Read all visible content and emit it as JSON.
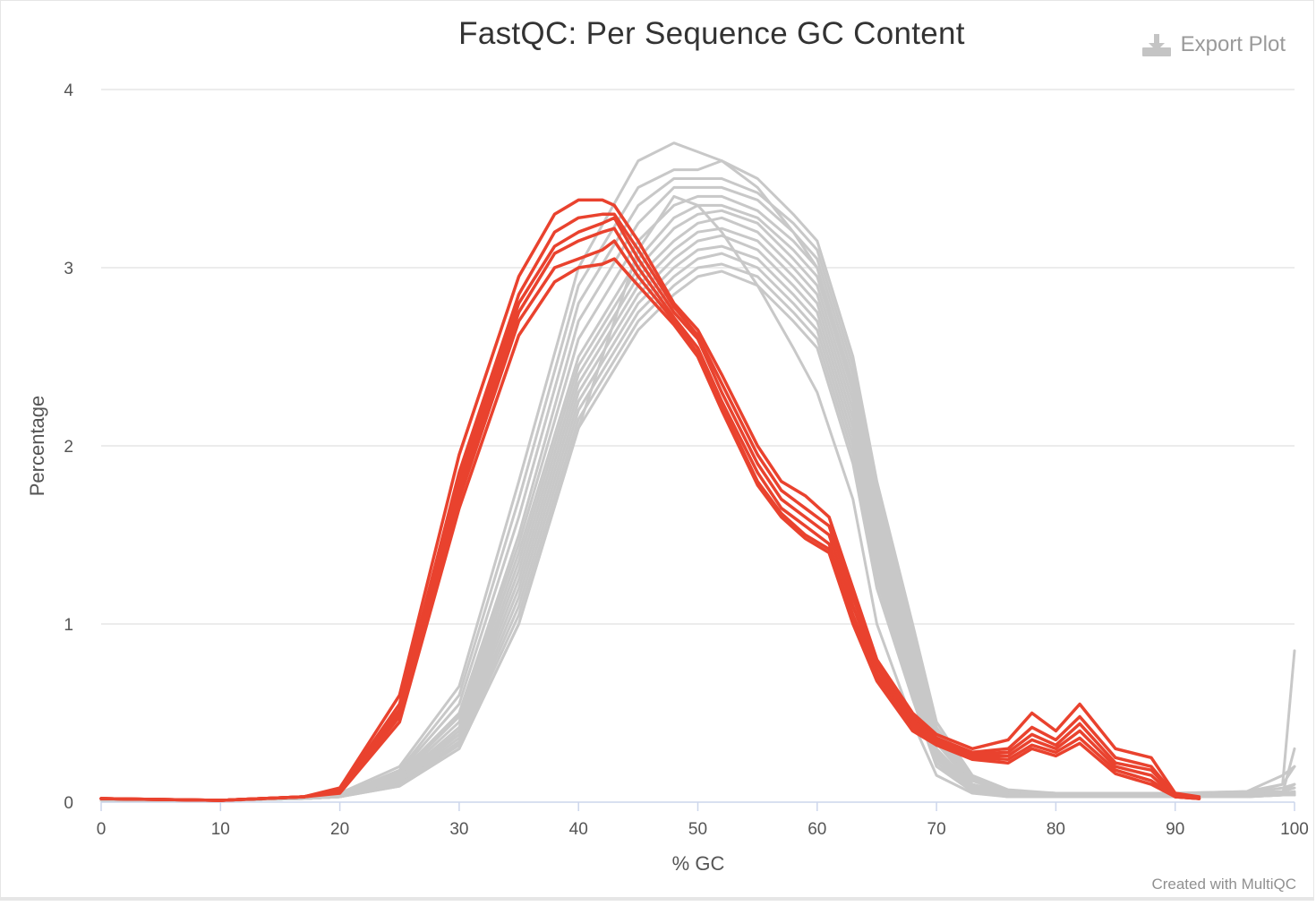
{
  "title": "FastQC: Per Sequence GC Content",
  "export_label": "Export Plot",
  "credit": "Created with MultiQC",
  "chart_data": {
    "type": "line",
    "title": "FastQC: Per Sequence GC Content",
    "xlabel": "% GC",
    "ylabel": "Percentage",
    "xlim": [
      0,
      100
    ],
    "ylim": [
      0,
      4
    ],
    "x_ticks": [
      "0",
      "10",
      "20",
      "30",
      "40",
      "50",
      "60",
      "70",
      "80",
      "90",
      "100"
    ],
    "y_ticks": [
      "0",
      "1",
      "2",
      "3",
      "4"
    ],
    "grid": true,
    "colors": {
      "fail": "#e9422e",
      "pass": "#c8c8c8"
    },
    "series": [
      {
        "status": "fail",
        "x": [
          0,
          10,
          17,
          20,
          25,
          30,
          35,
          38,
          40,
          42,
          43,
          45,
          48,
          50,
          52,
          55,
          57,
          59,
          61,
          63,
          65,
          68,
          70,
          73,
          76,
          78,
          80,
          82,
          85,
          88,
          90,
          92
        ],
        "y": [
          0.02,
          0.01,
          0.03,
          0.08,
          0.6,
          1.95,
          2.95,
          3.3,
          3.38,
          3.38,
          3.35,
          3.15,
          2.8,
          2.65,
          2.4,
          2.0,
          1.8,
          1.72,
          1.6,
          1.2,
          0.8,
          0.5,
          0.38,
          0.3,
          0.35,
          0.5,
          0.4,
          0.55,
          0.3,
          0.25,
          0.05,
          0.03
        ]
      },
      {
        "status": "fail",
        "x": [
          0,
          10,
          17,
          20,
          25,
          30,
          35,
          38,
          40,
          42,
          43,
          45,
          48,
          50,
          52,
          55,
          57,
          59,
          61,
          63,
          65,
          68,
          70,
          73,
          76,
          78,
          80,
          82,
          85,
          88,
          90,
          92
        ],
        "y": [
          0.02,
          0.01,
          0.03,
          0.07,
          0.55,
          1.85,
          2.85,
          3.2,
          3.28,
          3.3,
          3.3,
          3.1,
          2.78,
          2.62,
          2.35,
          1.95,
          1.75,
          1.65,
          1.55,
          1.15,
          0.78,
          0.48,
          0.36,
          0.28,
          0.3,
          0.42,
          0.35,
          0.48,
          0.25,
          0.2,
          0.04,
          0.02
        ]
      },
      {
        "status": "fail",
        "x": [
          0,
          10,
          17,
          20,
          25,
          30,
          35,
          38,
          40,
          42,
          43,
          45,
          48,
          50,
          52,
          55,
          57,
          59,
          61,
          63,
          65,
          68,
          70,
          73,
          76,
          78,
          80,
          82,
          85,
          88,
          90,
          92
        ],
        "y": [
          0.02,
          0.01,
          0.03,
          0.07,
          0.52,
          1.8,
          2.8,
          3.12,
          3.2,
          3.25,
          3.28,
          3.05,
          2.75,
          2.6,
          2.3,
          1.9,
          1.7,
          1.6,
          1.5,
          1.1,
          0.75,
          0.46,
          0.35,
          0.27,
          0.28,
          0.38,
          0.32,
          0.44,
          0.22,
          0.18,
          0.04,
          0.02
        ]
      },
      {
        "status": "fail",
        "x": [
          0,
          10,
          17,
          20,
          25,
          30,
          35,
          38,
          40,
          42,
          43,
          45,
          48,
          50,
          52,
          55,
          57,
          59,
          61,
          63,
          65,
          68,
          70,
          73,
          76,
          78,
          80,
          82,
          85,
          88,
          90,
          92
        ],
        "y": [
          0.02,
          0.01,
          0.03,
          0.06,
          0.5,
          1.75,
          2.75,
          3.08,
          3.15,
          3.2,
          3.22,
          3.0,
          2.72,
          2.55,
          2.25,
          1.85,
          1.65,
          1.55,
          1.45,
          1.05,
          0.72,
          0.44,
          0.34,
          0.26,
          0.26,
          0.35,
          0.3,
          0.4,
          0.2,
          0.15,
          0.03,
          0.02
        ]
      },
      {
        "status": "fail",
        "x": [
          0,
          10,
          17,
          20,
          25,
          30,
          35,
          38,
          40,
          42,
          43,
          45,
          48,
          50,
          52,
          55,
          57,
          59,
          61,
          63,
          65,
          68,
          70,
          73,
          76,
          78,
          80,
          82,
          85,
          88,
          90,
          92
        ],
        "y": [
          0.02,
          0.01,
          0.03,
          0.06,
          0.48,
          1.7,
          2.7,
          3.0,
          3.05,
          3.1,
          3.15,
          2.95,
          2.7,
          2.52,
          2.22,
          1.8,
          1.62,
          1.5,
          1.42,
          1.02,
          0.7,
          0.42,
          0.33,
          0.25,
          0.24,
          0.32,
          0.28,
          0.36,
          0.18,
          0.12,
          0.03,
          0.02
        ]
      },
      {
        "status": "fail",
        "x": [
          0,
          10,
          17,
          20,
          25,
          30,
          35,
          38,
          40,
          42,
          43,
          45,
          48,
          50,
          52,
          55,
          57,
          59,
          61,
          63,
          65,
          68,
          70,
          73,
          76,
          78,
          80,
          82,
          85,
          88,
          90,
          92
        ],
        "y": [
          0.02,
          0.01,
          0.03,
          0.05,
          0.45,
          1.65,
          2.62,
          2.92,
          3.0,
          3.02,
          3.05,
          2.9,
          2.68,
          2.5,
          2.2,
          1.78,
          1.6,
          1.48,
          1.4,
          1.0,
          0.68,
          0.4,
          0.32,
          0.24,
          0.22,
          0.3,
          0.26,
          0.33,
          0.16,
          0.1,
          0.03,
          0.02
        ]
      },
      {
        "status": "pass",
        "x": [
          0,
          10,
          17,
          20,
          25,
          30,
          35,
          40,
          45,
          48,
          50,
          52,
          55,
          58,
          60,
          63,
          65,
          68,
          70,
          73,
          76,
          80,
          90,
          96,
          99,
          100
        ],
        "y": [
          0.01,
          0.01,
          0.02,
          0.05,
          0.2,
          0.65,
          1.8,
          3.0,
          3.6,
          3.7,
          3.65,
          3.6,
          3.45,
          3.2,
          3.0,
          2.3,
          1.6,
          0.8,
          0.35,
          0.12,
          0.06,
          0.05,
          0.05,
          0.05,
          0.05,
          0.3
        ]
      },
      {
        "status": "pass",
        "x": [
          0,
          10,
          17,
          20,
          25,
          30,
          35,
          40,
          45,
          48,
          50,
          52,
          55,
          58,
          60,
          63,
          65,
          68,
          70,
          73,
          76,
          80,
          90,
          96,
          99,
          100
        ],
        "y": [
          0.01,
          0.01,
          0.02,
          0.04,
          0.18,
          0.6,
          1.7,
          2.9,
          3.45,
          3.55,
          3.55,
          3.6,
          3.5,
          3.3,
          3.15,
          2.5,
          1.8,
          1.0,
          0.45,
          0.15,
          0.07,
          0.05,
          0.05,
          0.05,
          0.1,
          0.85
        ]
      },
      {
        "status": "pass",
        "x": [
          0,
          10,
          17,
          20,
          25,
          30,
          35,
          40,
          45,
          48,
          50,
          52,
          55,
          58,
          60,
          63,
          65,
          68,
          70,
          73,
          76,
          80,
          90,
          96,
          99,
          100
        ],
        "y": [
          0.01,
          0.01,
          0.02,
          0.04,
          0.17,
          0.55,
          1.6,
          2.8,
          3.35,
          3.5,
          3.5,
          3.5,
          3.42,
          3.25,
          3.1,
          2.45,
          1.75,
          0.95,
          0.42,
          0.14,
          0.06,
          0.05,
          0.05,
          0.06,
          0.1,
          0.2
        ]
      },
      {
        "status": "pass",
        "x": [
          0,
          10,
          17,
          20,
          25,
          30,
          35,
          40,
          45,
          48,
          50,
          52,
          55,
          58,
          60,
          63,
          65,
          68,
          70,
          73,
          76,
          80,
          90,
          96,
          99,
          100
        ],
        "y": [
          0.01,
          0.01,
          0.02,
          0.04,
          0.16,
          0.5,
          1.5,
          2.7,
          3.25,
          3.45,
          3.45,
          3.45,
          3.38,
          3.2,
          3.05,
          2.4,
          1.7,
          0.9,
          0.4,
          0.13,
          0.06,
          0.05,
          0.05,
          0.06,
          0.15,
          0.2
        ]
      },
      {
        "status": "pass",
        "x": [
          0,
          10,
          17,
          20,
          25,
          30,
          35,
          40,
          45,
          48,
          50,
          52,
          55,
          58,
          60,
          63,
          65,
          68,
          70,
          73,
          76,
          80,
          90,
          96,
          99,
          100
        ],
        "y": [
          0.01,
          0.01,
          0.02,
          0.04,
          0.15,
          0.48,
          1.45,
          2.6,
          3.15,
          3.35,
          3.4,
          3.4,
          3.32,
          3.15,
          3.0,
          2.35,
          1.65,
          0.85,
          0.38,
          0.12,
          0.05,
          0.04,
          0.04,
          0.05,
          0.08,
          0.1
        ]
      },
      {
        "status": "pass",
        "x": [
          0,
          10,
          17,
          20,
          25,
          30,
          35,
          40,
          45,
          48,
          50,
          52,
          55,
          58,
          60,
          63,
          65,
          68,
          70,
          73,
          76,
          80,
          90,
          96,
          99,
          100
        ],
        "y": [
          0.01,
          0.01,
          0.02,
          0.03,
          0.14,
          0.45,
          1.4,
          2.5,
          3.05,
          3.28,
          3.35,
          3.35,
          3.28,
          3.1,
          2.95,
          2.3,
          1.6,
          0.8,
          0.35,
          0.1,
          0.05,
          0.04,
          0.04,
          0.05,
          0.06,
          0.1
        ]
      },
      {
        "status": "pass",
        "x": [
          0,
          10,
          17,
          20,
          25,
          30,
          35,
          40,
          45,
          48,
          50,
          52,
          55,
          58,
          60,
          63,
          65,
          68,
          70,
          73,
          76,
          80,
          90,
          96,
          99,
          100
        ],
        "y": [
          0.01,
          0.01,
          0.02,
          0.03,
          0.13,
          0.42,
          1.35,
          2.45,
          3.0,
          3.22,
          3.3,
          3.32,
          3.25,
          3.05,
          2.9,
          2.25,
          1.55,
          0.78,
          0.33,
          0.1,
          0.05,
          0.04,
          0.04,
          0.05,
          0.06,
          0.08
        ]
      },
      {
        "status": "pass",
        "x": [
          0,
          10,
          17,
          20,
          25,
          30,
          35,
          40,
          45,
          48,
          50,
          52,
          55,
          58,
          60,
          63,
          65,
          68,
          70,
          73,
          76,
          80,
          90,
          96,
          99,
          100
        ],
        "y": [
          0.01,
          0.01,
          0.02,
          0.03,
          0.12,
          0.4,
          1.3,
          2.4,
          2.95,
          3.15,
          3.25,
          3.28,
          3.2,
          3.0,
          2.85,
          2.2,
          1.5,
          0.75,
          0.3,
          0.09,
          0.04,
          0.03,
          0.03,
          0.04,
          0.05,
          0.06
        ]
      },
      {
        "status": "pass",
        "x": [
          0,
          10,
          17,
          20,
          25,
          30,
          35,
          40,
          45,
          48,
          50,
          52,
          55,
          58,
          60,
          63,
          65,
          68,
          70,
          73,
          76,
          80,
          90,
          96,
          99,
          100
        ],
        "y": [
          0.01,
          0.01,
          0.02,
          0.03,
          0.12,
          0.38,
          1.25,
          2.35,
          2.9,
          3.1,
          3.2,
          3.22,
          3.15,
          2.95,
          2.8,
          2.15,
          1.45,
          0.72,
          0.28,
          0.08,
          0.04,
          0.03,
          0.03,
          0.04,
          0.05,
          0.05
        ]
      },
      {
        "status": "pass",
        "x": [
          0,
          10,
          17,
          20,
          25,
          30,
          35,
          40,
          45,
          48,
          50,
          52,
          55,
          58,
          60,
          63,
          65,
          68,
          70,
          73,
          76,
          80,
          90,
          96,
          99,
          100
        ],
        "y": [
          0.01,
          0.01,
          0.02,
          0.03,
          0.11,
          0.36,
          1.2,
          2.3,
          2.85,
          3.05,
          3.15,
          3.18,
          3.1,
          2.9,
          2.75,
          2.1,
          1.4,
          0.7,
          0.26,
          0.08,
          0.04,
          0.03,
          0.03,
          0.04,
          0.05,
          0.05
        ]
      },
      {
        "status": "pass",
        "x": [
          0,
          10,
          17,
          20,
          25,
          30,
          35,
          40,
          45,
          48,
          50,
          52,
          55,
          58,
          60,
          63,
          65,
          68,
          70,
          73,
          76,
          80,
          90,
          96,
          99,
          100
        ],
        "y": [
          0.01,
          0.01,
          0.02,
          0.03,
          0.1,
          0.34,
          1.15,
          2.25,
          2.8,
          3.0,
          3.1,
          3.12,
          3.05,
          2.85,
          2.7,
          2.05,
          1.35,
          0.66,
          0.25,
          0.07,
          0.04,
          0.03,
          0.03,
          0.04,
          0.04,
          0.04
        ]
      },
      {
        "status": "pass",
        "x": [
          0,
          10,
          17,
          20,
          25,
          30,
          35,
          40,
          45,
          48,
          50,
          52,
          55,
          58,
          60,
          63,
          65,
          68,
          70,
          73,
          76,
          80,
          90,
          96,
          99,
          100
        ],
        "y": [
          0.01,
          0.01,
          0.02,
          0.03,
          0.1,
          0.33,
          1.1,
          2.2,
          2.75,
          2.95,
          3.05,
          3.08,
          3.0,
          2.8,
          2.65,
          2.0,
          1.3,
          0.62,
          0.24,
          0.07,
          0.03,
          0.03,
          0.03,
          0.03,
          0.04,
          0.04
        ]
      },
      {
        "status": "pass",
        "x": [
          0,
          10,
          17,
          20,
          25,
          30,
          35,
          40,
          45,
          48,
          50,
          52,
          55,
          58,
          60,
          63,
          65,
          68,
          70,
          73,
          76,
          80,
          90,
          96,
          99,
          100
        ],
        "y": [
          0.01,
          0.01,
          0.02,
          0.03,
          0.1,
          0.32,
          1.05,
          2.15,
          2.7,
          2.9,
          3.0,
          3.02,
          2.95,
          2.75,
          2.6,
          1.95,
          1.25,
          0.6,
          0.22,
          0.06,
          0.03,
          0.03,
          0.03,
          0.03,
          0.04,
          0.04
        ]
      },
      {
        "status": "pass",
        "x": [
          0,
          10,
          17,
          20,
          25,
          30,
          35,
          40,
          45,
          48,
          50,
          52,
          55,
          58,
          60,
          63,
          65,
          68,
          70,
          73,
          76,
          80,
          90,
          96,
          99,
          100
        ],
        "y": [
          0.01,
          0.01,
          0.02,
          0.03,
          0.09,
          0.3,
          1.0,
          2.1,
          2.65,
          2.85,
          2.95,
          2.98,
          2.9,
          2.7,
          2.55,
          1.9,
          1.2,
          0.58,
          0.2,
          0.06,
          0.03,
          0.03,
          0.03,
          0.03,
          0.04,
          0.04
        ]
      },
      {
        "status": "pass",
        "x": [
          0,
          10,
          17,
          20,
          25,
          30,
          35,
          40,
          45,
          48,
          50,
          52,
          55,
          58,
          60,
          63,
          65,
          68,
          70,
          73,
          76,
          80,
          90,
          96,
          99,
          100
        ],
        "y": [
          0.01,
          0.01,
          0.02,
          0.03,
          0.09,
          0.3,
          1.0,
          2.1,
          3.1,
          3.4,
          3.35,
          3.2,
          2.9,
          2.55,
          2.3,
          1.7,
          1.0,
          0.45,
          0.15,
          0.05,
          0.03,
          0.03,
          0.03,
          0.03,
          0.04,
          0.04
        ]
      }
    ]
  }
}
